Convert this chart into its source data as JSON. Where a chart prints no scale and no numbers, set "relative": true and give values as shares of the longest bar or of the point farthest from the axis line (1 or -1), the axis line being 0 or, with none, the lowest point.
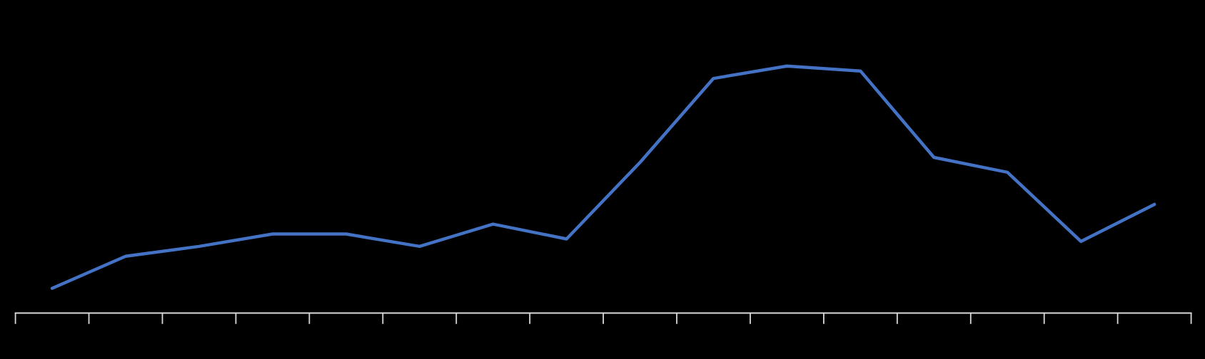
{
  "chart_data": {
    "type": "line",
    "relative": true,
    "categories": [
      null,
      null,
      null,
      null,
      null,
      null,
      null,
      null,
      null,
      null,
      null,
      null,
      null,
      null,
      null,
      null
    ],
    "series": [
      {
        "color": "#4472c4",
        "values": [
          0.1,
          0.23,
          0.27,
          0.32,
          0.32,
          0.27,
          0.36,
          0.3,
          0.61,
          0.95,
          1.0,
          0.98,
          0.63,
          0.57,
          0.29,
          0.44
        ]
      }
    ],
    "grid": false,
    "marker": "none",
    "line_style": "solid"
  }
}
